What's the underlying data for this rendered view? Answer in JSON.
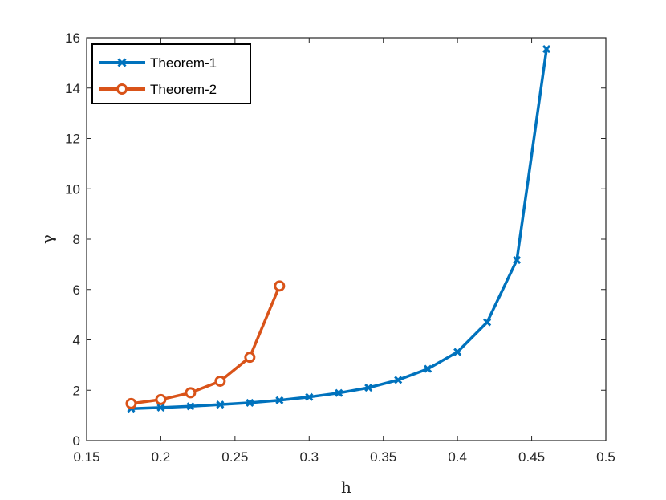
{
  "chart_data": {
    "type": "line",
    "xlabel": "h",
    "ylabel": "γ",
    "xlim": [
      0.15,
      0.5
    ],
    "ylim": [
      0,
      16
    ],
    "xticks": [
      "0.15",
      "0.2",
      "0.25",
      "0.3",
      "0.35",
      "0.4",
      "0.45",
      "0.5"
    ],
    "yticks": [
      "0",
      "2",
      "4",
      "6",
      "8",
      "10",
      "12",
      "14",
      "16"
    ],
    "grid": false,
    "legend_position": "top-left",
    "series": [
      {
        "name": "Theorem-1",
        "color": "#0072bd",
        "marker": "x",
        "x": [
          0.18,
          0.2,
          0.22,
          0.24,
          0.26,
          0.28,
          0.3,
          0.32,
          0.34,
          0.36,
          0.38,
          0.4,
          0.42,
          0.44,
          0.46
        ],
        "y": [
          1.27,
          1.31,
          1.36,
          1.43,
          1.5,
          1.6,
          1.73,
          1.89,
          2.1,
          2.41,
          2.85,
          3.52,
          4.7,
          7.17,
          15.55
        ]
      },
      {
        "name": "Theorem-2",
        "color": "#d95319",
        "marker": "o",
        "x": [
          0.18,
          0.2,
          0.22,
          0.24,
          0.26,
          0.28
        ],
        "y": [
          1.47,
          1.63,
          1.9,
          2.36,
          3.31,
          6.14
        ]
      }
    ]
  }
}
